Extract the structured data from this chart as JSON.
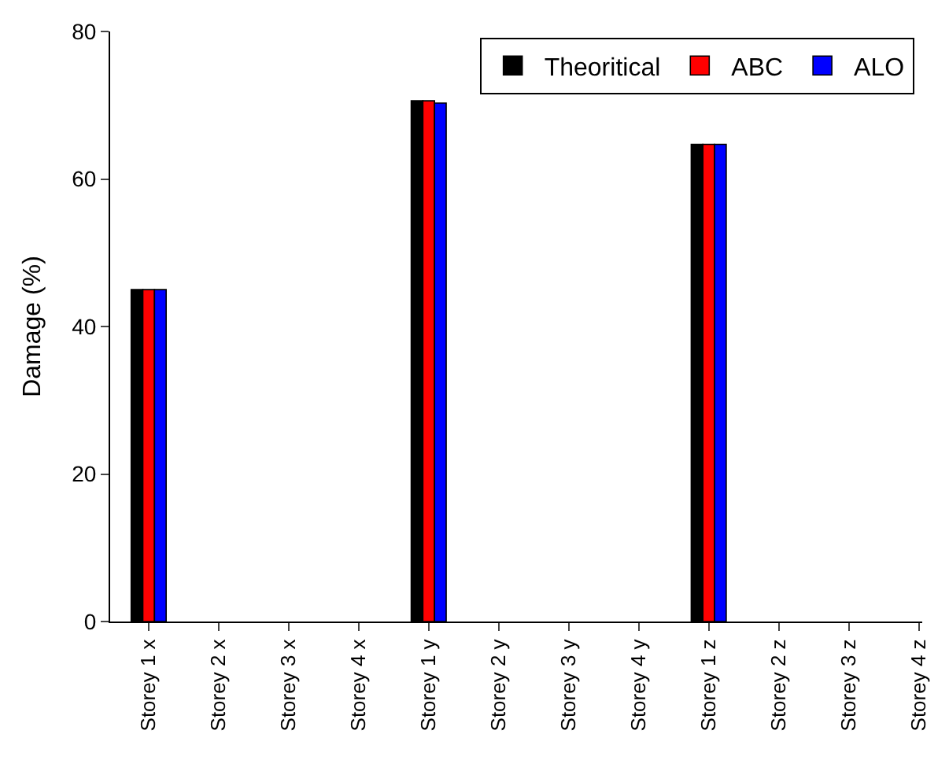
{
  "chart_data": {
    "type": "bar",
    "ylabel": "Damage (%)",
    "categories": [
      "Storey 1 x",
      "Storey 2 x",
      "Storey 3 x",
      "Storey 4 x",
      "Storey 1 y",
      "Storey 2 y",
      "Storey 3 y",
      "Storey 4 y",
      "Storey 1 z",
      "Storey 2 z",
      "Storey 3 z",
      "Storey 4 z"
    ],
    "series": [
      {
        "name": "Theoritical",
        "color": "#000000",
        "values": [
          45,
          0,
          0,
          0,
          70.6,
          0,
          0,
          0,
          64.7,
          0,
          0,
          0
        ]
      },
      {
        "name": "ABC",
        "color": "#ff0000",
        "values": [
          45,
          0,
          0,
          0,
          70.6,
          0,
          0,
          0,
          64.7,
          0,
          0,
          0
        ]
      },
      {
        "name": "ALO",
        "color": "#0000ff",
        "values": [
          45,
          0,
          0,
          0,
          70.3,
          0,
          0,
          0,
          64.7,
          0,
          0,
          0
        ]
      }
    ],
    "ylim": [
      0,
      80
    ],
    "yticks": [
      0,
      20,
      40,
      60,
      80
    ],
    "legend": "top right"
  }
}
